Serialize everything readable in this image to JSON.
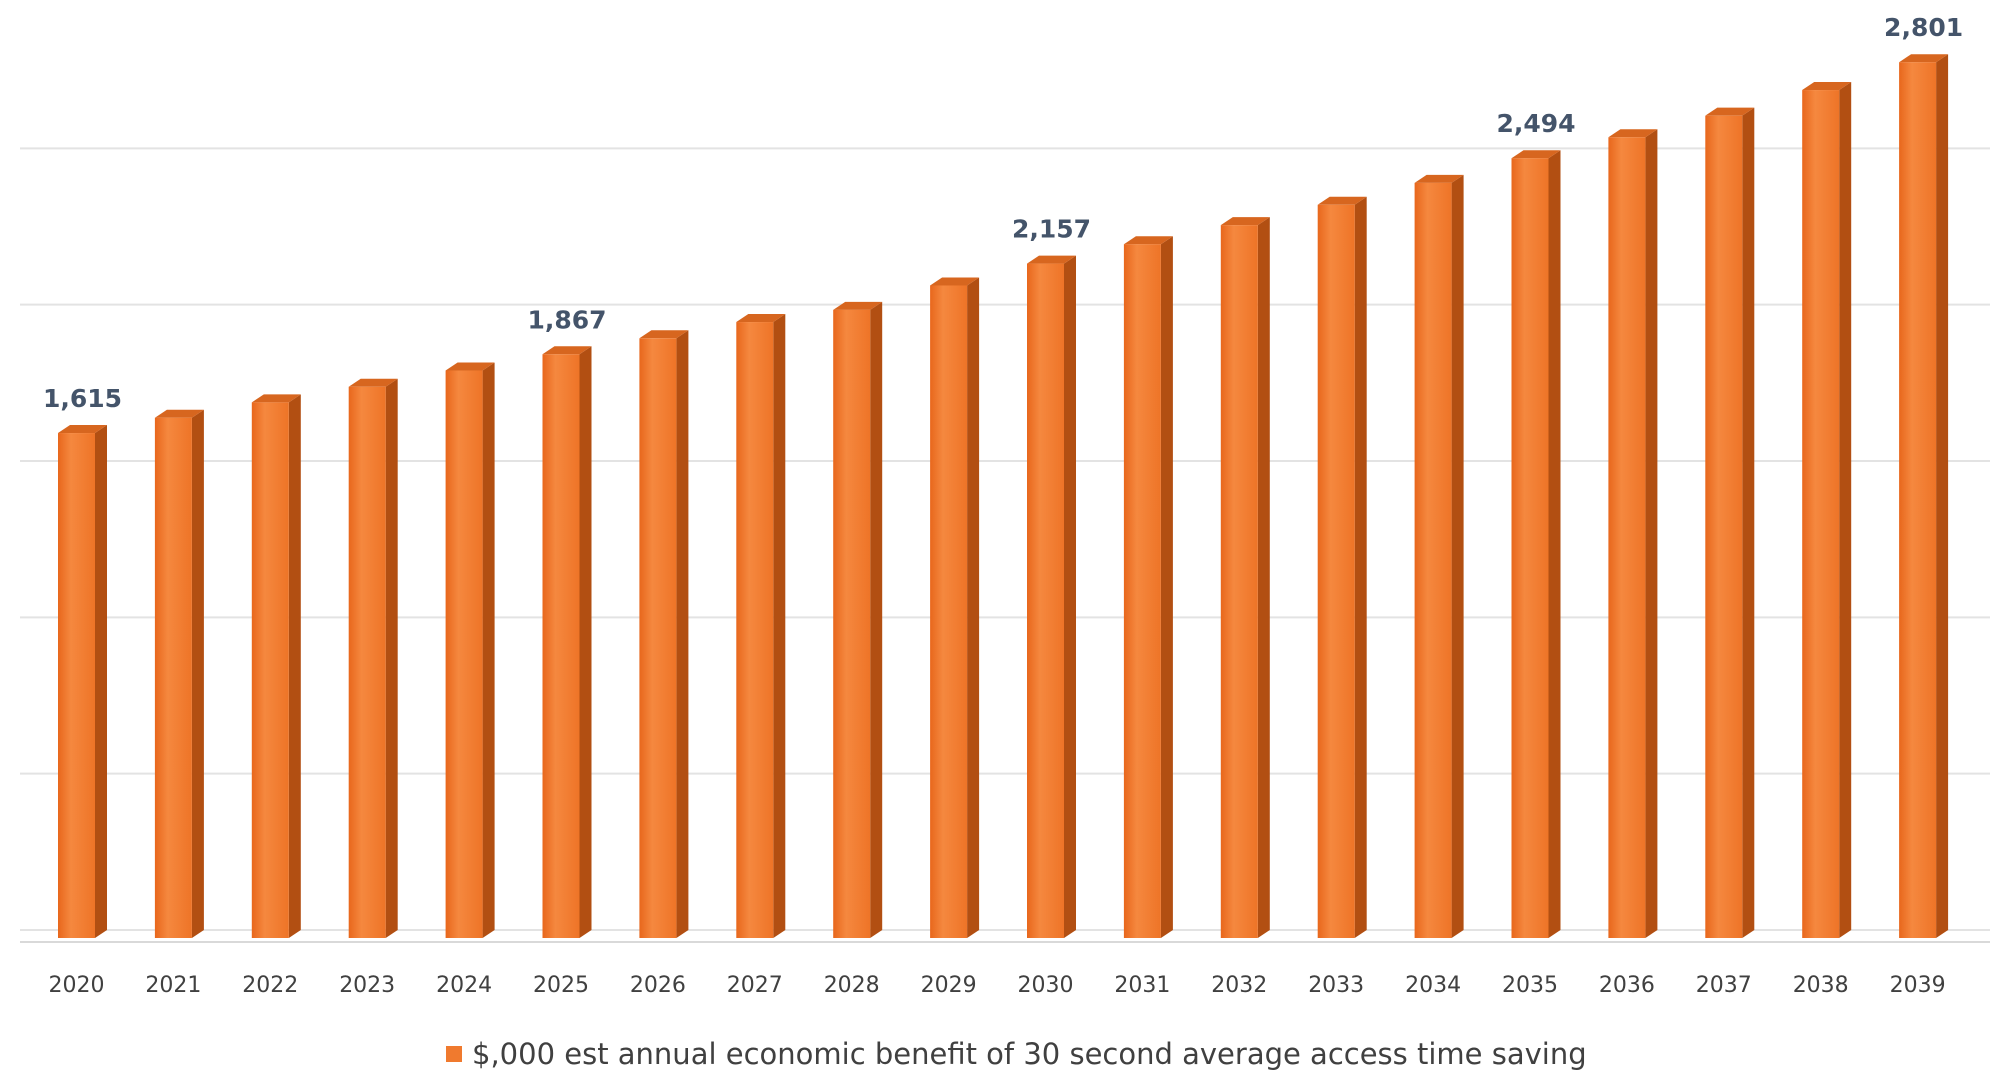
{
  "chart_data": {
    "type": "bar",
    "title": "",
    "xlabel": "",
    "ylabel": "",
    "categories": [
      "2020",
      "2021",
      "2022",
      "2023",
      "2024",
      "2025",
      "2026",
      "2027",
      "2028",
      "2029",
      "2030",
      "2031",
      "2032",
      "2033",
      "2034",
      "2035",
      "2036",
      "2037",
      "2038",
      "2039"
    ],
    "series": [
      {
        "name": "$,000 est annual economic benefit of 30 second average access time saving",
        "values": [
          1615,
          1664,
          1713,
          1763,
          1815,
          1867,
          1918,
          1970,
          2009,
          2087,
          2157,
          2219,
          2280,
          2345,
          2415,
          2494,
          2561,
          2630,
          2712,
          2801
        ],
        "color": "#f07a2e"
      }
    ],
    "data_labels": [
      {
        "category": "2020",
        "text": "1,615"
      },
      {
        "category": "2025",
        "text": "1,867"
      },
      {
        "category": "2030",
        "text": "2,157"
      },
      {
        "category": "2035",
        "text": "2,494"
      },
      {
        "category": "2039",
        "text": "2,801"
      }
    ],
    "ylim": [
      0,
      3000
    ],
    "y_axis_labels_visible": false,
    "grid": true,
    "bar_style": "3d-column",
    "legend_position": "bottom"
  }
}
